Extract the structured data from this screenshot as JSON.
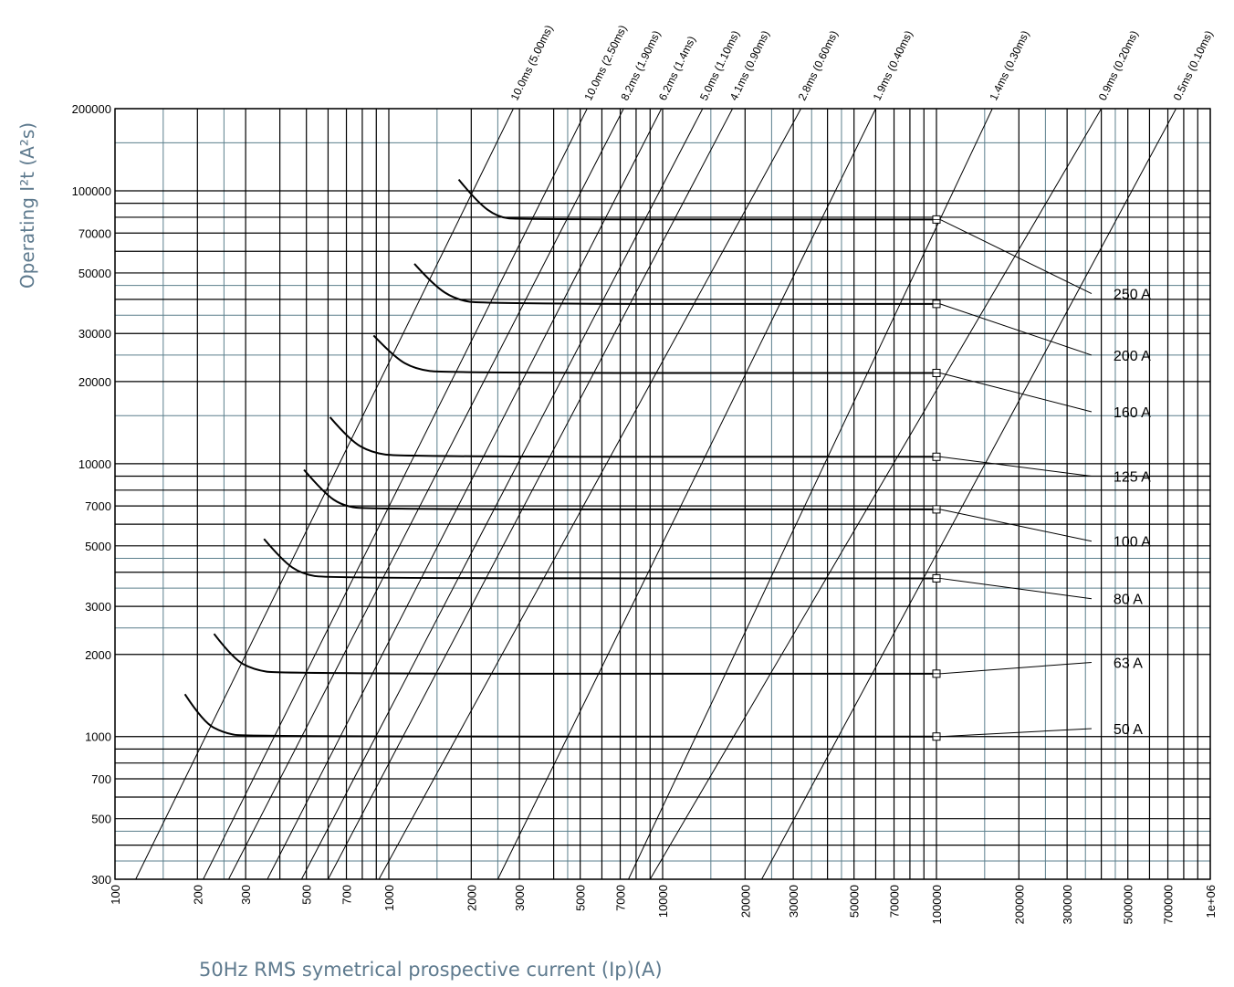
{
  "chart_data": {
    "type": "line",
    "title": "",
    "xlabel": "50Hz RMS symetrical prospective current (Ip)(A)",
    "ylabel": "Operating I²t (A²s)",
    "x_scale": "log",
    "y_scale": "log",
    "xlim": [
      100,
      1000000
    ],
    "ylim": [
      300,
      200000
    ],
    "grid": true,
    "colors": {
      "major_grid": "#000000",
      "minor_grid": "#5b7f8c",
      "curve": "#000000",
      "axis_title": "#5e7a8e"
    },
    "x_ticks": [
      {
        "value": 100,
        "label": "100"
      },
      {
        "value": 200,
        "label": "200"
      },
      {
        "value": 300,
        "label": "300"
      },
      {
        "value": 500,
        "label": "500"
      },
      {
        "value": 700,
        "label": "700"
      },
      {
        "value": 1000,
        "label": "1000"
      },
      {
        "value": 2000,
        "label": "2000"
      },
      {
        "value": 3000,
        "label": "3000"
      },
      {
        "value": 5000,
        "label": "5000"
      },
      {
        "value": 7000,
        "label": "7000"
      },
      {
        "value": 10000,
        "label": "10000"
      },
      {
        "value": 20000,
        "label": "20000"
      },
      {
        "value": 30000,
        "label": "30000"
      },
      {
        "value": 50000,
        "label": "50000"
      },
      {
        "value": 70000,
        "label": "70000"
      },
      {
        "value": 100000,
        "label": "100000"
      },
      {
        "value": 200000,
        "label": "200000"
      },
      {
        "value": 300000,
        "label": "300000"
      },
      {
        "value": 500000,
        "label": "500000"
      },
      {
        "value": 700000,
        "label": "700000"
      },
      {
        "value": 1000000,
        "label": "1e+06"
      }
    ],
    "y_ticks": [
      {
        "value": 300,
        "label": "300"
      },
      {
        "value": 500,
        "label": "500"
      },
      {
        "value": 700,
        "label": "700"
      },
      {
        "value": 1000,
        "label": "1000"
      },
      {
        "value": 2000,
        "label": "2000"
      },
      {
        "value": 3000,
        "label": "3000"
      },
      {
        "value": 5000,
        "label": "5000"
      },
      {
        "value": 7000,
        "label": "7000"
      },
      {
        "value": 10000,
        "label": "10000"
      },
      {
        "value": 20000,
        "label": "20000"
      },
      {
        "value": 30000,
        "label": "30000"
      },
      {
        "value": 50000,
        "label": "50000"
      },
      {
        "value": 70000,
        "label": "70000"
      },
      {
        "value": 100000,
        "label": "100000"
      },
      {
        "value": 200000,
        "label": "200000"
      }
    ],
    "x_grid": [
      100,
      200,
      300,
      400,
      500,
      600,
      700,
      800,
      900,
      1000,
      2000,
      3000,
      4000,
      5000,
      6000,
      7000,
      8000,
      9000,
      10000,
      20000,
      30000,
      40000,
      50000,
      60000,
      70000,
      80000,
      90000,
      100000,
      200000,
      300000,
      400000,
      500000,
      600000,
      700000,
      800000,
      900000,
      1000000
    ],
    "x_grid_minor": [
      150,
      250,
      1500,
      2500,
      4500,
      15000,
      25000,
      35000,
      45000,
      150000,
      250000,
      350000,
      450000
    ],
    "y_grid": [
      300,
      400,
      500,
      600,
      700,
      800,
      900,
      1000,
      2000,
      3000,
      4000,
      5000,
      6000,
      7000,
      8000,
      9000,
      10000,
      20000,
      30000,
      40000,
      50000,
      60000,
      70000,
      80000,
      90000,
      100000,
      200000
    ],
    "y_grid_minor": [
      350,
      450,
      2500,
      3500,
      4500,
      15000,
      25000,
      35000,
      45000,
      150000
    ],
    "series": [
      {
        "name": "50 A",
        "label": "50 A",
        "points": [
          [
            180,
            1430
          ],
          [
            210,
            1130
          ],
          [
            250,
            1030
          ],
          [
            300,
            1000
          ],
          [
            100000,
            1000
          ]
        ],
        "label_pos": [
          150000,
          1010
        ],
        "label_at": [
          380000,
          1070
        ]
      },
      {
        "name": "63 A",
        "label": "63 A",
        "points": [
          [
            230,
            2380
          ],
          [
            270,
            1930
          ],
          [
            320,
            1760
          ],
          [
            400,
            1700
          ],
          [
            100000,
            1700
          ]
        ],
        "label_pos": [
          100000,
          1700
        ],
        "label_at": [
          380000,
          1870
        ]
      },
      {
        "name": "80 A",
        "label": "80 A",
        "points": [
          [
            350,
            5300
          ],
          [
            410,
            4400
          ],
          [
            480,
            3950
          ],
          [
            600,
            3800
          ],
          [
            100000,
            3800
          ]
        ],
        "label_pos": [
          100000,
          3800
        ],
        "label_at": [
          380000,
          3200
        ]
      },
      {
        "name": "100 A",
        "label": "100 A",
        "points": [
          [
            490,
            9500
          ],
          [
            580,
            7800
          ],
          [
            680,
            7000
          ],
          [
            850,
            6800
          ],
          [
            100000,
            6800
          ]
        ],
        "label_pos": [
          100000,
          6800
        ],
        "label_at": [
          380000,
          5200
        ]
      },
      {
        "name": "125 A",
        "label": "125 A",
        "points": [
          [
            610,
            14800
          ],
          [
            720,
            12200
          ],
          [
            860,
            11000
          ],
          [
            1100,
            10600
          ],
          [
            100000,
            10600
          ]
        ],
        "label_pos": [
          100000,
          10600
        ],
        "label_at": [
          380000,
          9000
        ]
      },
      {
        "name": "160 A",
        "label": "160 A",
        "points": [
          [
            880,
            29500
          ],
          [
            1050,
            24500
          ],
          [
            1250,
            22200
          ],
          [
            1600,
            21500
          ],
          [
            100000,
            21500
          ]
        ],
        "label_pos": [
          100000,
          21500
        ],
        "label_at": [
          380000,
          15500
        ]
      },
      {
        "name": "200 A",
        "label": "200 A",
        "points": [
          [
            1240,
            54000
          ],
          [
            1460,
            45000
          ],
          [
            1750,
            40000
          ],
          [
            2200,
            38500
          ],
          [
            100000,
            38500
          ]
        ],
        "label_pos": [
          100000,
          38500
        ],
        "label_at": [
          380000,
          25000
        ]
      },
      {
        "name": "250 A",
        "label": "250 A",
        "points": [
          [
            1800,
            110000
          ],
          [
            2100,
            91000
          ],
          [
            2500,
            80000
          ],
          [
            3000,
            78500
          ],
          [
            100000,
            78500
          ]
        ],
        "label_pos": [
          100000,
          78500
        ],
        "label_at": [
          380000,
          42000
        ]
      }
    ],
    "time_lines": [
      {
        "label": "10.0ms (5.00ms)",
        "points": [
          [
            119,
            300
          ],
          [
            2850,
            200000
          ]
        ]
      },
      {
        "label": "10.0ms (2.50ms)",
        "points": [
          [
            210,
            300
          ],
          [
            5300,
            200000
          ]
        ]
      },
      {
        "label": "8.2ms (1.90ms)",
        "points": [
          [
            260,
            300
          ],
          [
            7200,
            200000
          ]
        ]
      },
      {
        "label": "6.2ms (1.4ms)",
        "points": [
          [
            360,
            300
          ],
          [
            9900,
            200000
          ]
        ]
      },
      {
        "label": "5.0ms (1.10ms)",
        "points": [
          [
            480,
            300
          ],
          [
            14000,
            200000
          ]
        ]
      },
      {
        "label": "4.1ms (0.90ms)",
        "points": [
          [
            600,
            300
          ],
          [
            18000,
            200000
          ]
        ]
      },
      {
        "label": "2.8ms (0.60ms)",
        "points": [
          [
            920,
            300
          ],
          [
            32000,
            200000
          ]
        ]
      },
      {
        "label": "1.9ms (0.40ms)",
        "points": [
          [
            2500,
            300
          ],
          [
            60000,
            200000
          ]
        ]
      },
      {
        "label": "1.4ms (0.30ms)",
        "points": [
          [
            7500,
            300
          ],
          [
            160000,
            200000
          ]
        ]
      },
      {
        "label": "0.9ms (0.20ms)",
        "points": [
          [
            9000,
            300
          ],
          [
            400000,
            200000
          ]
        ]
      },
      {
        "label": "0.5ms (0.10ms)",
        "points": [
          [
            23000,
            300
          ],
          [
            750000,
            200000
          ]
        ]
      }
    ]
  }
}
